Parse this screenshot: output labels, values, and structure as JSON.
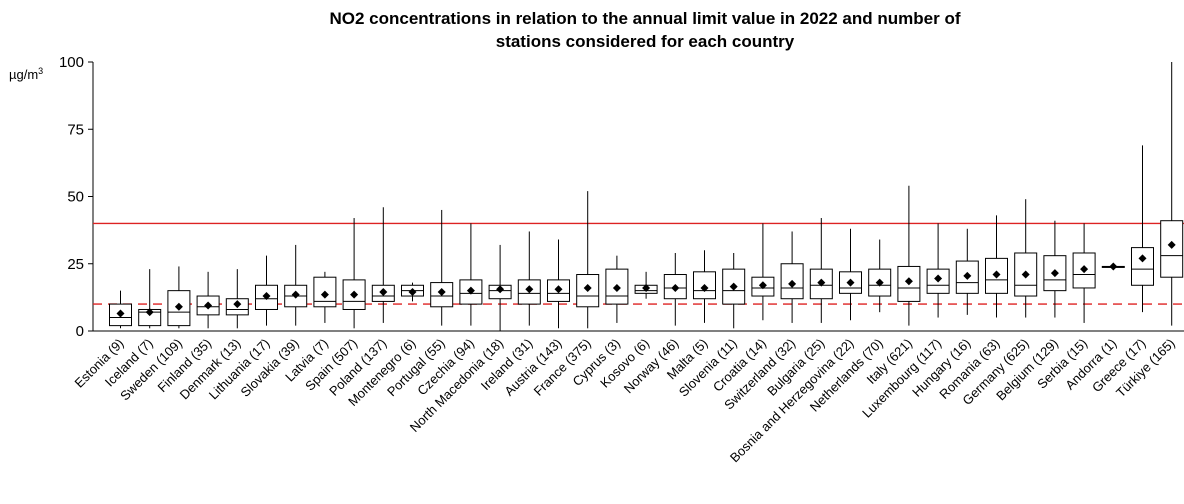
{
  "chart_data": {
    "type": "boxplot",
    "title_line1": "NO2 concentrations in relation to the annual limit value in 2022 and number of",
    "title_line2": "stations considered for each country",
    "ylabel_unit": "µg/m",
    "ylabel_unit_sup": "3",
    "ylim": [
      0,
      100
    ],
    "yticks": [
      0,
      25,
      50,
      75,
      100
    ],
    "reference_lines": [
      {
        "value": 40,
        "style": "solid",
        "color": "#dd2222"
      },
      {
        "value": 10,
        "style": "dashed",
        "color": "#dd2222"
      }
    ],
    "box_color": "#000000",
    "mean_marker_color": "#000000",
    "categories": [
      "Estonia (9)",
      "Iceland (7)",
      "Sweden (109)",
      "Finland (35)",
      "Denmark (13)",
      "Lithuania (17)",
      "Slovakia (39)",
      "Latvia (7)",
      "Spain (507)",
      "Poland (137)",
      "Montenegro (6)",
      "Portugal (55)",
      "Czechia (94)",
      "North Macedonia (18)",
      "Ireland (31)",
      "Austria (143)",
      "France (375)",
      "Cyprus (3)",
      "Kosovo (6)",
      "Norway (46)",
      "Malta (5)",
      "Slovenia (11)",
      "Croatia (14)",
      "Switzerland (32)",
      "Bulgaria (25)",
      "Bosnia and Herzegovina (22)",
      "Netherlands (70)",
      "Italy (621)",
      "Luxembourg (117)",
      "Hungary (16)",
      "Romania (63)",
      "Germany (625)",
      "Belgium (129)",
      "Serbia (15)",
      "Andorra (1)",
      "Greece (17)",
      "Türkiye (165)"
    ],
    "series": [
      {
        "whisker_low": [
          1,
          1,
          1,
          1,
          1,
          2,
          2,
          3,
          1,
          3,
          11,
          2,
          2,
          0,
          2,
          1,
          1,
          3,
          12,
          2,
          3,
          1,
          4,
          3,
          3,
          4,
          7,
          2,
          5,
          6,
          5,
          5,
          5,
          3,
          24,
          7,
          2
        ],
        "q1": [
          2,
          2,
          2,
          6,
          6,
          8,
          9,
          9,
          8,
          11,
          13,
          9,
          10,
          12,
          10,
          11,
          9,
          10,
          14,
          12,
          12,
          10,
          13,
          12,
          12,
          14,
          13,
          11,
          14,
          14,
          14,
          13,
          15,
          16,
          24,
          17,
          20
        ],
        "median": [
          5,
          7,
          7,
          9,
          8,
          12,
          13,
          11,
          11,
          13,
          15,
          13,
          14,
          15,
          14,
          14,
          13,
          13,
          15,
          16,
          15,
          15,
          16,
          16,
          17,
          16,
          17,
          16,
          17,
          18,
          19,
          17,
          19,
          21,
          24,
          23,
          28
        ],
        "q3": [
          10,
          8,
          15,
          13,
          12,
          17,
          17,
          20,
          19,
          17,
          17,
          18,
          19,
          17,
          19,
          19,
          21,
          23,
          17,
          21,
          22,
          23,
          20,
          25,
          23,
          22,
          23,
          24,
          23,
          26,
          27,
          29,
          28,
          29,
          24,
          31,
          41
        ],
        "whisker_high": [
          15,
          23,
          24,
          22,
          23,
          28,
          32,
          22,
          42,
          46,
          18,
          45,
          40,
          32,
          37,
          34,
          52,
          28,
          22,
          29,
          30,
          29,
          40,
          37,
          42,
          38,
          34,
          54,
          40,
          38,
          43,
          49,
          41,
          40,
          24,
          69,
          100
        ],
        "mean": [
          6.5,
          7,
          9,
          9.5,
          10,
          13,
          13.5,
          13.5,
          13.5,
          14.5,
          14.5,
          14.5,
          15,
          15.5,
          15.5,
          15.5,
          16,
          16,
          16,
          16,
          16,
          16.5,
          17,
          17.5,
          18,
          18,
          18,
          18.5,
          19.5,
          20.5,
          21,
          21,
          21.5,
          23,
          24,
          27,
          32
        ]
      }
    ]
  }
}
